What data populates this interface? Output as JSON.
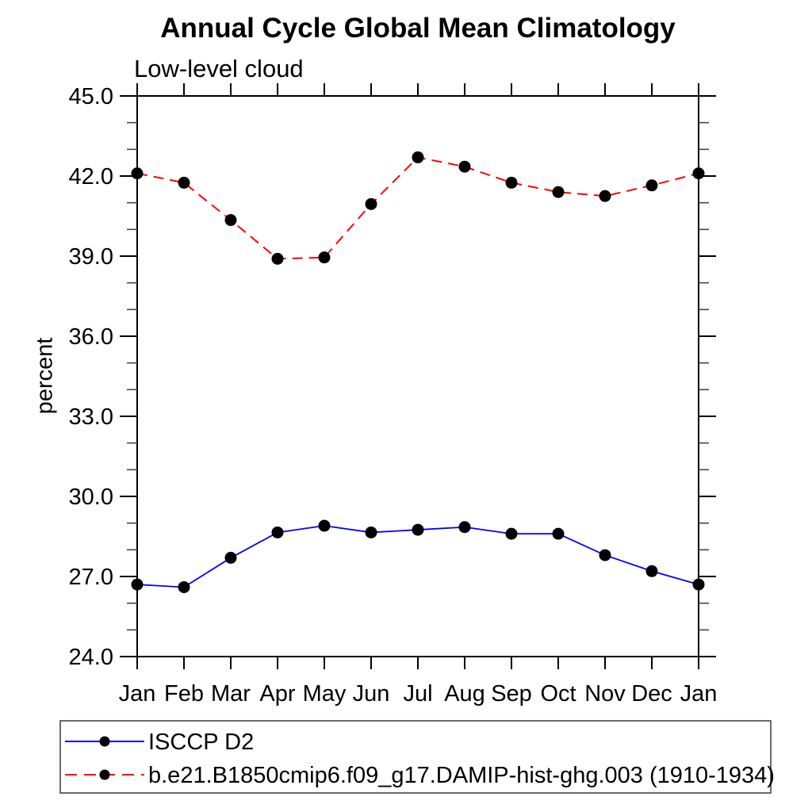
{
  "chart_data": {
    "type": "line",
    "title": "Annual Cycle Global Mean Climatology",
    "subtitle": "Low-level cloud",
    "ylabel": "percent",
    "xlabel": "",
    "x_categories": [
      "Jan",
      "Feb",
      "Mar",
      "Apr",
      "May",
      "Jun",
      "Jul",
      "Aug",
      "Sep",
      "Oct",
      "Nov",
      "Dec",
      "Jan"
    ],
    "ylim": [
      24.0,
      45.0
    ],
    "ytick_major_step": 3.0,
    "ytick_minor_step": 1.0,
    "ytick_labels": [
      "24.0",
      "27.0",
      "30.0",
      "33.0",
      "36.0",
      "39.0",
      "42.0",
      "45.0"
    ],
    "grid": false,
    "legend_position": "bottom-left-box",
    "axis_color": "#000000",
    "marker_color": "#000000",
    "series": [
      {
        "name": "ISCCP D2",
        "line_color": "#0000ff",
        "line_style": "solid",
        "marker": "filled-circle",
        "values": [
          26.7,
          26.6,
          27.7,
          28.65,
          28.9,
          28.65,
          28.75,
          28.85,
          28.6,
          28.6,
          27.8,
          27.2,
          26.7
        ]
      },
      {
        "name": "b.e21.B1850cmip6.f09_g17.DAMIP-hist-ghg.003 (1910-1934)",
        "line_color": "#ff0000",
        "line_style": "dashed",
        "marker": "filled-circle",
        "values": [
          42.1,
          41.75,
          40.35,
          38.9,
          38.95,
          40.95,
          42.7,
          42.35,
          41.75,
          41.4,
          41.25,
          41.65,
          42.1
        ]
      }
    ]
  }
}
